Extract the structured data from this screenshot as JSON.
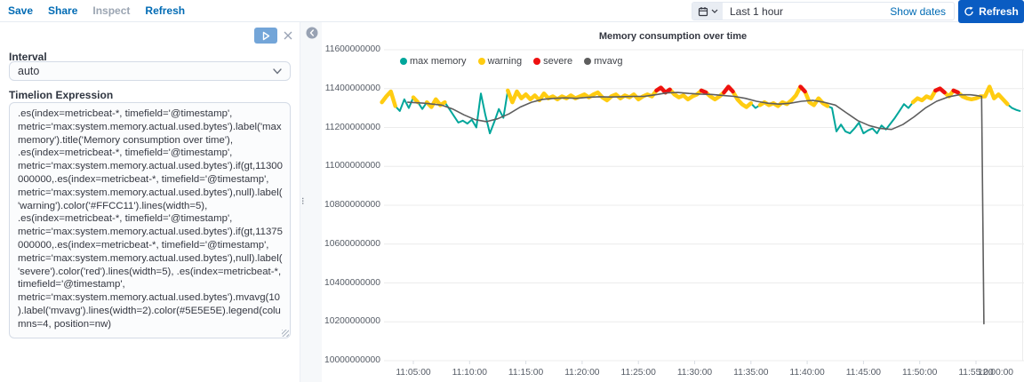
{
  "topbar": {
    "links": [
      "Save",
      "Share",
      "Inspect",
      "Refresh"
    ],
    "time_range": "Last 1 hour",
    "show_dates_label": "Show dates",
    "refresh_label": "Refresh"
  },
  "editor": {
    "interval_label": "Interval",
    "interval_value": "auto",
    "expression_label": "Timelion Expression",
    "expression": ".es(index=metricbeat-*, timefield='@timestamp', metric='max:system.memory.actual.used.bytes').label('max memory').title('Memory consumption over time'), .es(index=metricbeat-*, timefield='@timestamp', metric='max:system.memory.actual.used.bytes').if(gt,11300000000,.es(index=metricbeat-*, timefield='@timestamp', metric='max:system.memory.actual.used.bytes'),null).label('warning').color('#FFCC11').lines(width=5), .es(index=metricbeat-*, timefield='@timestamp', metric='max:system.memory.actual.used.bytes').if(gt,11375000000,.es(index=metricbeat-*, timefield='@timestamp', metric='max:system.memory.actual.used.bytes'),null).label('severe').color('red').lines(width=5), .es(index=metricbeat-*, timefield='@timestamp', metric='max:system.memory.actual.used.bytes').mvavg(10).label('mvavg').lines(width=2).color(#5E5E5E).legend(columns=4, position=nw)"
  },
  "icons": [
    "calendar-icon",
    "chevron-down-icon",
    "refresh-icon",
    "play-icon",
    "close-icon",
    "collapse-left-icon",
    "drag-handle-icon"
  ],
  "colors": {
    "accent_link": "#006BB4",
    "refresh_button": "#0a5cc2",
    "max_memory": "#00A69B",
    "warning": "#FFCC11",
    "severe": "#EE1111",
    "mvavg": "#5E5E5E"
  },
  "chart_data": {
    "type": "line",
    "title": "Memory consumption over time",
    "x_domain_minutes": [
      0,
      60
    ],
    "x_start_time": "11:00:00",
    "ylim": [
      10000000000,
      11600000000
    ],
    "grid": "horizontal",
    "legend_position": "nw",
    "yticks": [
      11600000000,
      11400000000,
      11200000000,
      11000000000,
      10800000000,
      10600000000,
      10400000000,
      10200000000,
      10000000000
    ],
    "xticks": [
      {
        "t": 5,
        "label": "11:05:00"
      },
      {
        "t": 10,
        "label": "11:10:00"
      },
      {
        "t": 15,
        "label": "11:15:00"
      },
      {
        "t": 20,
        "label": "11:20:00"
      },
      {
        "t": 25,
        "label": "11:25:00"
      },
      {
        "t": 30,
        "label": "11:30:00"
      },
      {
        "t": 35,
        "label": "11:35:00"
      },
      {
        "t": 40,
        "label": "11:40:00"
      },
      {
        "t": 45,
        "label": "11:45:00"
      },
      {
        "t": 50,
        "label": "11:50:00"
      },
      {
        "t": 55,
        "label": "11:55:00"
      },
      {
        "t": 60,
        "label": "12:00:00"
      }
    ],
    "thresholds": {
      "warning_gt": 11.3,
      "severe_gt": 11.375
    },
    "unit": "bytes x 1e9 (minutes after 11:00, value)",
    "legend": [
      {
        "label": "max memory",
        "color": "#00A69B"
      },
      {
        "label": "warning",
        "color": "#FFCC11"
      },
      {
        "label": "severe",
        "color": "#EE1111"
      },
      {
        "label": "mvavg",
        "color": "#5E5E5E"
      }
    ],
    "series": [
      {
        "name": "max memory",
        "color": "#00A69B",
        "width": 2,
        "points": [
          [
            2.2,
            11.33
          ],
          [
            2.6,
            11.36
          ],
          [
            3.0,
            11.385
          ],
          [
            3.4,
            11.31
          ],
          [
            3.8,
            11.285
          ],
          [
            4.2,
            11.345
          ],
          [
            4.6,
            11.3
          ],
          [
            5.0,
            11.355
          ],
          [
            5.4,
            11.33
          ],
          [
            5.8,
            11.295
          ],
          [
            6.2,
            11.33
          ],
          [
            6.6,
            11.305
          ],
          [
            7.0,
            11.345
          ],
          [
            7.4,
            11.315
          ],
          [
            7.8,
            11.33
          ],
          [
            8.2,
            11.295
          ],
          [
            8.6,
            11.26
          ],
          [
            9.0,
            11.225
          ],
          [
            9.4,
            11.235
          ],
          [
            9.8,
            11.22
          ],
          [
            10.2,
            11.24
          ],
          [
            10.6,
            11.2
          ],
          [
            11.0,
            11.375
          ],
          [
            11.4,
            11.265
          ],
          [
            11.8,
            11.17
          ],
          [
            12.2,
            11.23
          ],
          [
            12.6,
            11.295
          ],
          [
            13.0,
            11.25
          ],
          [
            13.4,
            11.39
          ],
          [
            13.8,
            11.33
          ],
          [
            14.2,
            11.385
          ],
          [
            14.6,
            11.35
          ],
          [
            15.0,
            11.37
          ],
          [
            15.4,
            11.345
          ],
          [
            15.8,
            11.365
          ],
          [
            16.2,
            11.34
          ],
          [
            16.6,
            11.375
          ],
          [
            17.0,
            11.35
          ],
          [
            17.4,
            11.36
          ],
          [
            17.8,
            11.345
          ],
          [
            18.2,
            11.36
          ],
          [
            18.6,
            11.35
          ],
          [
            19.0,
            11.365
          ],
          [
            19.4,
            11.35
          ],
          [
            19.8,
            11.36
          ],
          [
            20.2,
            11.37
          ],
          [
            20.6,
            11.355
          ],
          [
            21.0,
            11.37
          ],
          [
            21.4,
            11.38
          ],
          [
            21.8,
            11.355
          ],
          [
            22.2,
            11.34
          ],
          [
            22.6,
            11.36
          ],
          [
            23.0,
            11.37
          ],
          [
            23.4,
            11.35
          ],
          [
            23.8,
            11.365
          ],
          [
            24.2,
            11.355
          ],
          [
            24.6,
            11.37
          ],
          [
            25.0,
            11.345
          ],
          [
            25.4,
            11.36
          ],
          [
            25.8,
            11.37
          ],
          [
            26.2,
            11.36
          ],
          [
            26.6,
            11.39
          ],
          [
            27.0,
            11.405
          ],
          [
            27.4,
            11.38
          ],
          [
            27.8,
            11.395
          ],
          [
            28.2,
            11.37
          ],
          [
            28.6,
            11.355
          ],
          [
            29.0,
            11.365
          ],
          [
            29.4,
            11.345
          ],
          [
            29.8,
            11.36
          ],
          [
            30.2,
            11.37
          ],
          [
            30.6,
            11.39
          ],
          [
            31.0,
            11.38
          ],
          [
            31.4,
            11.36
          ],
          [
            31.8,
            11.345
          ],
          [
            32.2,
            11.36
          ],
          [
            32.6,
            11.38
          ],
          [
            33.0,
            11.41
          ],
          [
            33.4,
            11.385
          ],
          [
            33.8,
            11.345
          ],
          [
            34.2,
            11.32
          ],
          [
            34.6,
            11.305
          ],
          [
            35.0,
            11.325
          ],
          [
            35.4,
            11.3
          ],
          [
            35.8,
            11.315
          ],
          [
            36.2,
            11.33
          ],
          [
            36.6,
            11.315
          ],
          [
            37.0,
            11.325
          ],
          [
            37.4,
            11.31
          ],
          [
            37.8,
            11.33
          ],
          [
            38.2,
            11.32
          ],
          [
            38.6,
            11.34
          ],
          [
            39.0,
            11.365
          ],
          [
            39.4,
            11.41
          ],
          [
            39.8,
            11.385
          ],
          [
            40.2,
            11.33
          ],
          [
            40.6,
            11.315
          ],
          [
            41.0,
            11.35
          ],
          [
            41.4,
            11.325
          ],
          [
            41.8,
            11.31
          ],
          [
            42.2,
            11.3
          ],
          [
            42.6,
            11.18
          ],
          [
            43.0,
            11.215
          ],
          [
            43.4,
            11.18
          ],
          [
            43.8,
            11.17
          ],
          [
            44.2,
            11.195
          ],
          [
            44.6,
            11.225
          ],
          [
            45.0,
            11.17
          ],
          [
            45.4,
            11.185
          ],
          [
            45.8,
            11.195
          ],
          [
            46.2,
            11.17
          ],
          [
            46.6,
            11.21
          ],
          [
            47.0,
            11.19
          ],
          [
            47.4,
            11.22
          ],
          [
            47.8,
            11.25
          ],
          [
            48.2,
            11.285
          ],
          [
            48.6,
            11.32
          ],
          [
            49.0,
            11.3
          ],
          [
            49.4,
            11.33
          ],
          [
            49.8,
            11.35
          ],
          [
            50.2,
            11.34
          ],
          [
            50.6,
            11.36
          ],
          [
            51.0,
            11.35
          ],
          [
            51.4,
            11.39
          ],
          [
            51.8,
            11.4
          ],
          [
            52.2,
            11.38
          ],
          [
            52.6,
            11.36
          ],
          [
            53.0,
            11.39
          ],
          [
            53.4,
            11.38
          ],
          [
            53.8,
            11.36
          ],
          [
            54.2,
            11.35
          ],
          [
            54.6,
            11.345
          ],
          [
            55.0,
            11.35
          ],
          [
            55.4,
            11.36
          ],
          [
            55.8,
            11.36
          ],
          [
            56.2,
            11.41
          ],
          [
            56.6,
            11.35
          ],
          [
            57.0,
            11.37
          ],
          [
            57.4,
            11.345
          ],
          [
            57.8,
            11.32
          ],
          [
            58.2,
            11.3
          ],
          [
            58.6,
            11.29
          ],
          [
            58.9,
            11.285
          ]
        ]
      },
      {
        "name": "mvavg",
        "color": "#5E5E5E",
        "width": 1.6,
        "points": [
          [
            4.5,
            11.33
          ],
          [
            6,
            11.325
          ],
          [
            7.5,
            11.315
          ],
          [
            8.5,
            11.295
          ],
          [
            9.5,
            11.265
          ],
          [
            10.5,
            11.24
          ],
          [
            11.5,
            11.23
          ],
          [
            12.5,
            11.245
          ],
          [
            13.5,
            11.27
          ],
          [
            14.5,
            11.305
          ],
          [
            15.5,
            11.33
          ],
          [
            16.5,
            11.345
          ],
          [
            17.5,
            11.35
          ],
          [
            18.5,
            11.352
          ],
          [
            19.5,
            11.35
          ],
          [
            20.5,
            11.355
          ],
          [
            21.5,
            11.358
          ],
          [
            22.5,
            11.357
          ],
          [
            23.5,
            11.358
          ],
          [
            24.5,
            11.36
          ],
          [
            25.5,
            11.36
          ],
          [
            26.5,
            11.368
          ],
          [
            27.5,
            11.378
          ],
          [
            28.5,
            11.38
          ],
          [
            29.5,
            11.375
          ],
          [
            30.5,
            11.372
          ],
          [
            31.5,
            11.37
          ],
          [
            32.5,
            11.365
          ],
          [
            33.5,
            11.36
          ],
          [
            34.5,
            11.35
          ],
          [
            35.5,
            11.335
          ],
          [
            36.5,
            11.325
          ],
          [
            37.5,
            11.32
          ],
          [
            38.5,
            11.325
          ],
          [
            39.5,
            11.335
          ],
          [
            40.5,
            11.34
          ],
          [
            41.5,
            11.33
          ],
          [
            42.5,
            11.315
          ],
          [
            43.5,
            11.275
          ],
          [
            44.5,
            11.235
          ],
          [
            45.5,
            11.21
          ],
          [
            46.5,
            11.195
          ],
          [
            47.5,
            11.19
          ],
          [
            48.5,
            11.215
          ],
          [
            49.5,
            11.255
          ],
          [
            50.5,
            11.3
          ],
          [
            51.5,
            11.335
          ],
          [
            52.5,
            11.357
          ],
          [
            53.5,
            11.368
          ],
          [
            54.5,
            11.368
          ],
          [
            55.0,
            11.365
          ],
          [
            55.5,
            11.36
          ],
          [
            55.7,
            10.19
          ]
        ]
      }
    ]
  }
}
